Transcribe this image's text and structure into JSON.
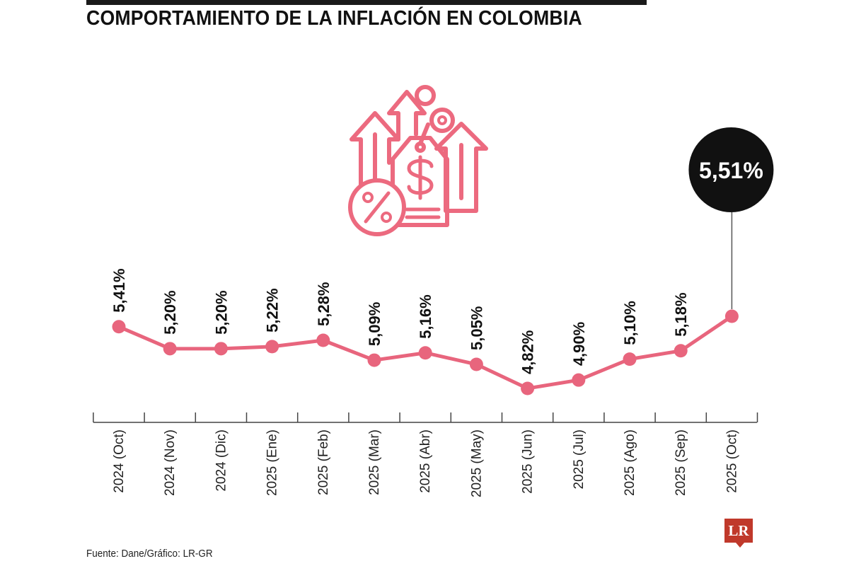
{
  "header": {
    "title": "COMPORTAMIENTO DE LA INFLACIÓN EN COLOMBIA"
  },
  "footer": {
    "source": "Fuente: Dane/Gráfico: LR-GR",
    "logo_text": "LR"
  },
  "colors": {
    "line": "#e8657d",
    "marker": "#e8657d",
    "icon": "#ec6a7f",
    "callout_bg": "#111111",
    "callout_text": "#ffffff",
    "text": "#111111",
    "logo": "#c0392b"
  },
  "icon": "inflation-price-tag-arrows-icon",
  "chart_data": {
    "type": "line",
    "title": "COMPORTAMIENTO DE LA INFLACIÓN EN COLOMBIA",
    "xlabel": "",
    "ylabel": "",
    "grid": false,
    "categories": [
      "2024 (Oct)",
      "2024 (Nov)",
      "2024 (Dic)",
      "2025 (Ene)",
      "2025 (Feb)",
      "2025 (Mar)",
      "2025 (Abr)",
      "2025 (May)",
      "2025 (Jun)",
      "2025 (Jul)",
      "2025 (Ago)",
      "2025 (Sep)",
      "2025 (Oct)"
    ],
    "values": [
      5.41,
      5.2,
      5.2,
      5.22,
      5.28,
      5.09,
      5.16,
      5.05,
      4.82,
      4.9,
      5.1,
      5.18,
      5.51
    ],
    "labels": [
      "5,41%",
      "5,20%",
      "5,20%",
      "5,22%",
      "5,28%",
      "5,09%",
      "5,16%",
      "5,05%",
      "4,82%",
      "4,90%",
      "5,10%",
      "5,18%",
      "5,51%"
    ],
    "highlight": {
      "index": 12,
      "label": "5,51%"
    }
  }
}
